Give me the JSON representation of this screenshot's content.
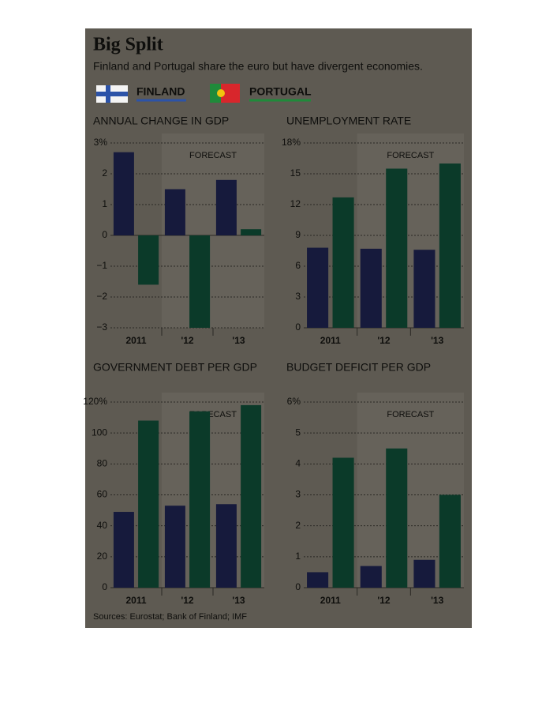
{
  "title": "Big Split",
  "subtitle": "Finland and Portugal share the euro but have divergent economies.",
  "legend": [
    {
      "name": "FINLAND",
      "color": "#161a3c"
    },
    {
      "name": "PORTUGAL",
      "color": "#0b3a29"
    }
  ],
  "source": "Sources: Eurostat; Bank of Finland; IMF",
  "chart_data": [
    {
      "type": "bar",
      "title": "ANNUAL CHANGE IN GDP",
      "annotation": "FORECAST",
      "categories": [
        "2011",
        "'12",
        "'13"
      ],
      "series": [
        {
          "values": [
            2.7,
            1.5,
            1.8
          ]
        },
        {
          "values": [
            -1.6,
            -3.0,
            0.2
          ]
        }
      ],
      "ylim": [
        -3,
        3
      ],
      "yticks": [
        {
          "value": -3,
          "label": "−3"
        },
        {
          "value": -2,
          "label": "−2"
        },
        {
          "value": -1,
          "label": "−1"
        },
        0,
        1,
        2,
        {
          "value": 3,
          "label": "3%"
        }
      ],
      "grid": true
    },
    {
      "type": "bar",
      "title": "UNEMPLOYMENT RATE",
      "annotation": "FORECAST",
      "categories": [
        "2011",
        "'12",
        "'13"
      ],
      "series": [
        {
          "values": [
            7.8,
            7.7,
            7.6
          ]
        },
        {
          "values": [
            12.7,
            15.5,
            16.0
          ]
        }
      ],
      "ylim": [
        0,
        18
      ],
      "yticks": [
        0,
        3,
        6,
        9,
        12,
        15,
        {
          "value": 18,
          "label": "18%"
        }
      ],
      "grid": true
    },
    {
      "type": "bar",
      "title": "GOVERNMENT DEBT PER GDP",
      "annotation": "FORECAST",
      "categories": [
        "2011",
        "'12",
        "'13"
      ],
      "series": [
        {
          "values": [
            49,
            53,
            54
          ]
        },
        {
          "values": [
            108,
            114,
            118
          ]
        }
      ],
      "ylim": [
        0,
        120
      ],
      "yticks": [
        0,
        20,
        40,
        60,
        80,
        100,
        {
          "value": 120,
          "label": "120%"
        }
      ],
      "grid": true
    },
    {
      "type": "bar",
      "title": "BUDGET DEFICIT PER GDP",
      "annotation": "FORECAST",
      "categories": [
        "2011",
        "'12",
        "'13"
      ],
      "series": [
        {
          "values": [
            0.5,
            0.7,
            0.9
          ]
        },
        {
          "values": [
            4.2,
            4.5,
            3.0
          ]
        }
      ],
      "ylim": [
        0,
        6
      ],
      "yticks": [
        0,
        1,
        2,
        3,
        4,
        5,
        {
          "value": 6,
          "label": "6%"
        }
      ],
      "grid": true
    }
  ]
}
